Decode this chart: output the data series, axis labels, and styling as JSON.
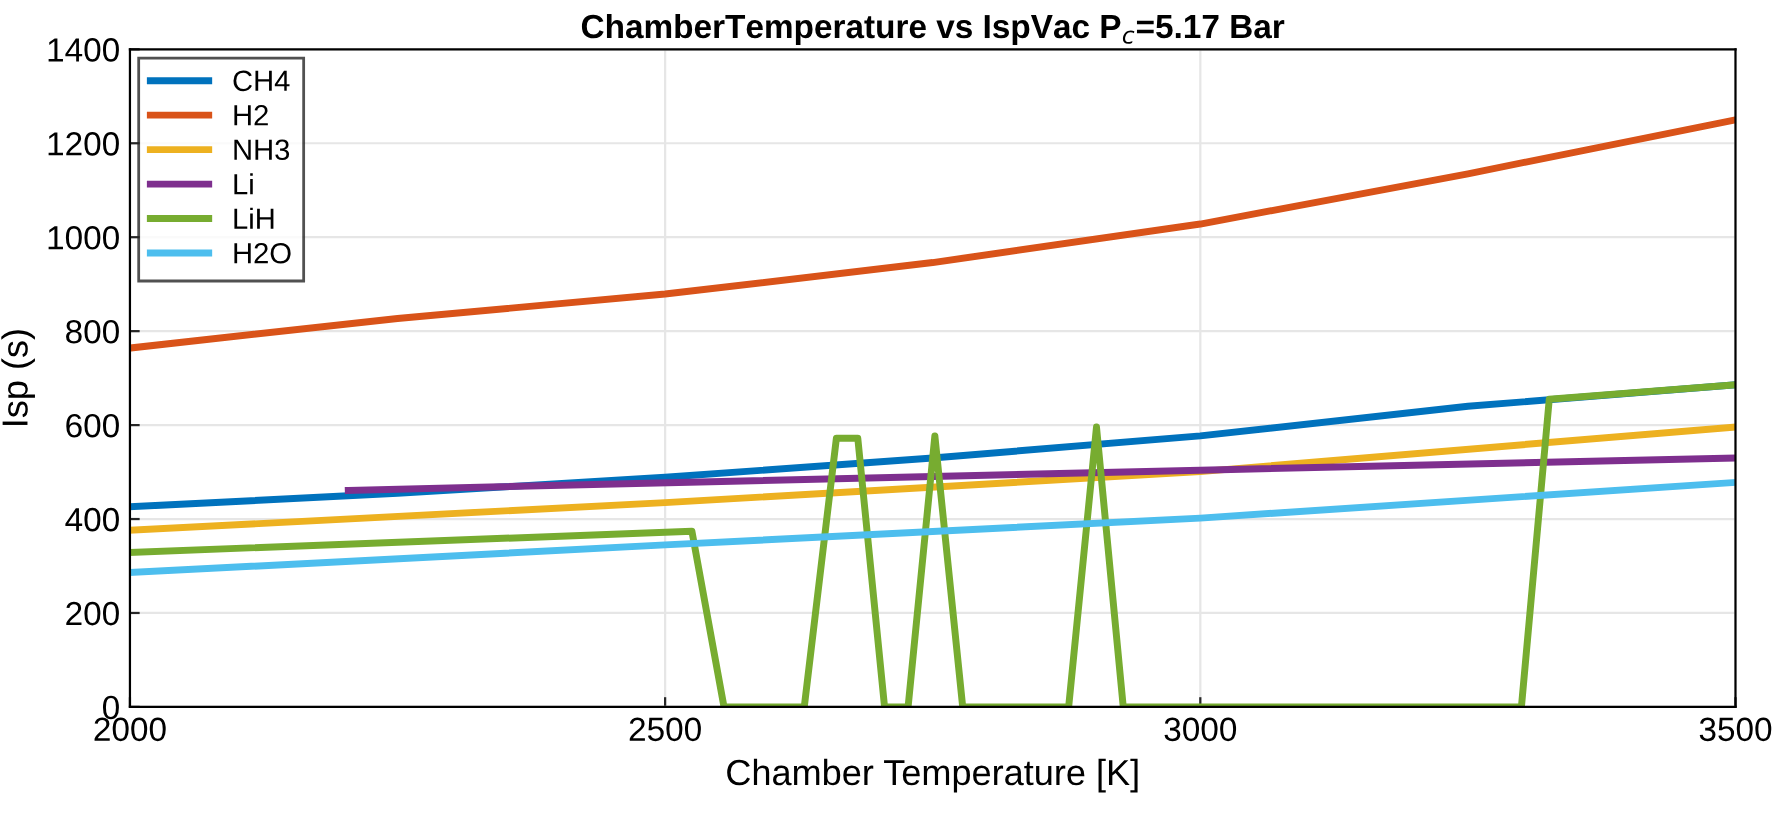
{
  "chart_data": {
    "type": "line",
    "title": "ChamberTemperature vs IspVac P$_{c}$=5.17 Bar",
    "xlabel": "Chamber Temperature [K]",
    "ylabel": "Isp (s)",
    "xlim": [
      2000,
      3500
    ],
    "ylim": [
      0,
      1400
    ],
    "xticks": [
      2000,
      2500,
      3000,
      3500
    ],
    "yticks": [
      0,
      200,
      400,
      600,
      800,
      1000,
      1200,
      1400
    ],
    "grid": true,
    "legend": "top left",
    "marker": "none",
    "line_style": "solid",
    "series": [
      {
        "name": "CH4",
        "color": "#0072bd",
        "x": [
          2000,
          2250,
          2500,
          2750,
          3000,
          3250,
          3500
        ],
        "values": [
          426,
          455,
          489,
          530,
          577,
          640,
          686
        ]
      },
      {
        "name": "H2",
        "color": "#d95319",
        "x": [
          2000,
          2250,
          2500,
          2750,
          3000,
          3250,
          3500
        ],
        "values": [
          764,
          827,
          879,
          946,
          1028,
          1135,
          1250
        ]
      },
      {
        "name": "NH3",
        "color": "#edb120",
        "x": [
          2000,
          2500,
          3000,
          3500
        ],
        "values": [
          376,
          435,
          501,
          596
        ]
      },
      {
        "name": "Li",
        "color": "#7e2f8e",
        "x": [
          2204,
          3000,
          3500
        ],
        "values": [
          461,
          504,
          530
        ]
      },
      {
        "name": "LiH",
        "color": "#77ac30",
        "x": [
          2000,
          2525,
          2555,
          2630,
          2660,
          2680,
          2705,
          2727,
          2752,
          2778,
          2877,
          2903,
          2928,
          3300,
          3326,
          3500
        ],
        "values": [
          329,
          374,
          0,
          0,
          572,
          572,
          0,
          0,
          577,
          0,
          0,
          596,
          0,
          0,
          655,
          686
        ]
      },
      {
        "name": "H2O",
        "color": "#4dbeee",
        "x": [
          2000,
          2500,
          3000,
          3500
        ],
        "values": [
          286,
          345,
          402,
          478
        ]
      }
    ]
  }
}
